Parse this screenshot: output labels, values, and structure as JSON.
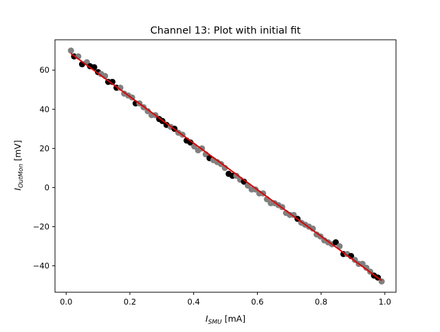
{
  "figure": {
    "background": "#ffffff"
  },
  "chart_data": {
    "type": "scatter",
    "title": "Channel 13: Plot with initial fit",
    "xlabel": {
      "symbol": "I",
      "sub": "SMU",
      "unit": " [mA]"
    },
    "ylabel": {
      "symbol": "I",
      "sub": "OutMon",
      "unit": " [mV]"
    },
    "xlim": [
      -0.035,
      1.035
    ],
    "ylim": [
      -53.5,
      75.5
    ],
    "xticks": [
      0.0,
      0.2,
      0.4,
      0.6,
      0.8,
      1.0
    ],
    "xtick_labels": [
      "0.0",
      "0.2",
      "0.4",
      "0.6",
      "0.8",
      "1.0"
    ],
    "yticks": [
      -40,
      -20,
      0,
      20,
      40,
      60
    ],
    "ytick_labels": [
      "−40",
      "−20",
      "0",
      "20",
      "40",
      "60"
    ],
    "grid": false,
    "series": [
      {
        "marker": "circle",
        "color_dark": "#000000",
        "color_light": "#808080",
        "points": [
          {
            "x": 0.015,
            "y": 70.0,
            "c": "gray"
          },
          {
            "x": 0.025,
            "y": 67.0,
            "c": "black"
          },
          {
            "x": 0.038,
            "y": 67.0,
            "c": "gray"
          },
          {
            "x": 0.05,
            "y": 63.0,
            "c": "black"
          },
          {
            "x": 0.065,
            "y": 64.0,
            "c": "gray"
          },
          {
            "x": 0.075,
            "y": 62.0,
            "c": "black"
          },
          {
            "x": 0.088,
            "y": 61.5,
            "c": "black"
          },
          {
            "x": 0.1,
            "y": 59.0,
            "c": "black"
          },
          {
            "x": 0.11,
            "y": 58.0,
            "c": "gray"
          },
          {
            "x": 0.122,
            "y": 57.0,
            "c": "gray"
          },
          {
            "x": 0.132,
            "y": 54.0,
            "c": "black"
          },
          {
            "x": 0.145,
            "y": 54.0,
            "c": "black"
          },
          {
            "x": 0.158,
            "y": 51.0,
            "c": "black"
          },
          {
            "x": 0.17,
            "y": 51.0,
            "c": "gray"
          },
          {
            "x": 0.182,
            "y": 48.0,
            "c": "gray"
          },
          {
            "x": 0.195,
            "y": 47.0,
            "c": "gray"
          },
          {
            "x": 0.207,
            "y": 46.0,
            "c": "gray"
          },
          {
            "x": 0.218,
            "y": 43.0,
            "c": "black"
          },
          {
            "x": 0.23,
            "y": 43.0,
            "c": "gray"
          },
          {
            "x": 0.243,
            "y": 41.0,
            "c": "gray"
          },
          {
            "x": 0.256,
            "y": 39.0,
            "c": "gray"
          },
          {
            "x": 0.268,
            "y": 37.0,
            "c": "gray"
          },
          {
            "x": 0.28,
            "y": 37.0,
            "c": "gray"
          },
          {
            "x": 0.292,
            "y": 35.0,
            "c": "black"
          },
          {
            "x": 0.302,
            "y": 34.0,
            "c": "black"
          },
          {
            "x": 0.315,
            "y": 32.0,
            "c": "black"
          },
          {
            "x": 0.328,
            "y": 31.0,
            "c": "gray"
          },
          {
            "x": 0.34,
            "y": 30.0,
            "c": "black"
          },
          {
            "x": 0.352,
            "y": 28.0,
            "c": "gray"
          },
          {
            "x": 0.365,
            "y": 27.0,
            "c": "gray"
          },
          {
            "x": 0.378,
            "y": 24.0,
            "c": "black"
          },
          {
            "x": 0.39,
            "y": 23.0,
            "c": "black"
          },
          {
            "x": 0.402,
            "y": 21.0,
            "c": "gray"
          },
          {
            "x": 0.414,
            "y": 19.0,
            "c": "gray"
          },
          {
            "x": 0.426,
            "y": 20.0,
            "c": "gray"
          },
          {
            "x": 0.438,
            "y": 17.0,
            "c": "gray"
          },
          {
            "x": 0.45,
            "y": 15.0,
            "c": "black"
          },
          {
            "x": 0.462,
            "y": 14.0,
            "c": "gray"
          },
          {
            "x": 0.474,
            "y": 13.0,
            "c": "gray"
          },
          {
            "x": 0.486,
            "y": 12.0,
            "c": "gray"
          },
          {
            "x": 0.498,
            "y": 10.0,
            "c": "gray"
          },
          {
            "x": 0.51,
            "y": 7.0,
            "c": "black"
          },
          {
            "x": 0.522,
            "y": 6.0,
            "c": "black"
          },
          {
            "x": 0.534,
            "y": 6.0,
            "c": "gray"
          },
          {
            "x": 0.546,
            "y": 4.0,
            "c": "gray"
          },
          {
            "x": 0.558,
            "y": 3.0,
            "c": "black"
          },
          {
            "x": 0.57,
            "y": 1.0,
            "c": "gray"
          },
          {
            "x": 0.582,
            "y": -1.0,
            "c": "gray"
          },
          {
            "x": 0.594,
            "y": -1.0,
            "c": "gray"
          },
          {
            "x": 0.606,
            "y": -3.0,
            "c": "gray"
          },
          {
            "x": 0.618,
            "y": -3.0,
            "c": "gray"
          },
          {
            "x": 0.63,
            "y": -6.0,
            "c": "gray"
          },
          {
            "x": 0.642,
            "y": -8.0,
            "c": "gray"
          },
          {
            "x": 0.654,
            "y": -8.0,
            "c": "gray"
          },
          {
            "x": 0.666,
            "y": -9.0,
            "c": "gray"
          },
          {
            "x": 0.678,
            "y": -10.0,
            "c": "gray"
          },
          {
            "x": 0.69,
            "y": -13.0,
            "c": "gray"
          },
          {
            "x": 0.702,
            "y": -14.0,
            "c": "gray"
          },
          {
            "x": 0.714,
            "y": -14.0,
            "c": "gray"
          },
          {
            "x": 0.726,
            "y": -16.0,
            "c": "black"
          },
          {
            "x": 0.738,
            "y": -18.0,
            "c": "gray"
          },
          {
            "x": 0.75,
            "y": -19.0,
            "c": "gray"
          },
          {
            "x": 0.762,
            "y": -20.0,
            "c": "gray"
          },
          {
            "x": 0.774,
            "y": -21.0,
            "c": "gray"
          },
          {
            "x": 0.786,
            "y": -24.0,
            "c": "gray"
          },
          {
            "x": 0.798,
            "y": -25.0,
            "c": "gray"
          },
          {
            "x": 0.81,
            "y": -27.0,
            "c": "gray"
          },
          {
            "x": 0.822,
            "y": -28.0,
            "c": "gray"
          },
          {
            "x": 0.834,
            "y": -29.0,
            "c": "gray"
          },
          {
            "x": 0.846,
            "y": -28.0,
            "c": "black"
          },
          {
            "x": 0.858,
            "y": -30.0,
            "c": "gray"
          },
          {
            "x": 0.87,
            "y": -34.0,
            "c": "black"
          },
          {
            "x": 0.882,
            "y": -34.0,
            "c": "gray"
          },
          {
            "x": 0.894,
            "y": -35.0,
            "c": "black"
          },
          {
            "x": 0.906,
            "y": -37.0,
            "c": "gray"
          },
          {
            "x": 0.918,
            "y": -39.0,
            "c": "gray"
          },
          {
            "x": 0.93,
            "y": -39.0,
            "c": "gray"
          },
          {
            "x": 0.942,
            "y": -41.0,
            "c": "gray"
          },
          {
            "x": 0.954,
            "y": -43.0,
            "c": "gray"
          },
          {
            "x": 0.966,
            "y": -45.0,
            "c": "black"
          },
          {
            "x": 0.978,
            "y": -46.0,
            "c": "black"
          },
          {
            "x": 0.99,
            "y": -48.0,
            "c": "gray"
          }
        ]
      }
    ],
    "fit": {
      "type": "line",
      "color": "#dd0000",
      "x": [
        0.015,
        0.99
      ],
      "y": [
        68.5,
        -47.5
      ]
    }
  }
}
